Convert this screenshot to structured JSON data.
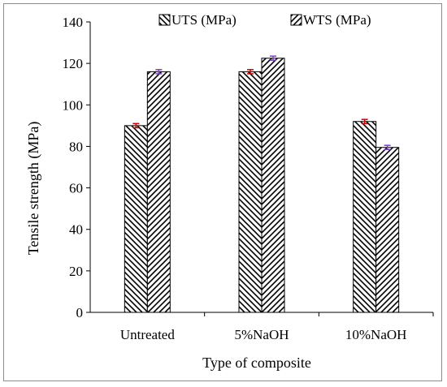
{
  "chart_data": {
    "type": "bar",
    "title": "",
    "xlabel": "Type of composite",
    "ylabel": "Tensile strength (MPa)",
    "categories": [
      "Untreated",
      "5%NaOH",
      "10%NaOH"
    ],
    "ylim": [
      0,
      140
    ],
    "yticks": [
      "0",
      "20",
      "40",
      "60",
      "80",
      "100",
      "120",
      "140"
    ],
    "grid": false,
    "legend_placement": "top",
    "series": [
      {
        "name": "UTS (MPa)",
        "values": [
          90,
          116,
          92
        ],
        "errors": [
          1,
          1,
          1
        ],
        "hatch": "backslash",
        "error_color": "#cc0000"
      },
      {
        "name": "WTS (MPa)",
        "values": [
          116,
          122.5,
          79.5
        ],
        "errors": [
          1,
          1,
          1
        ],
        "hatch": "slash",
        "error_color": "#7a3fc1"
      }
    ]
  }
}
